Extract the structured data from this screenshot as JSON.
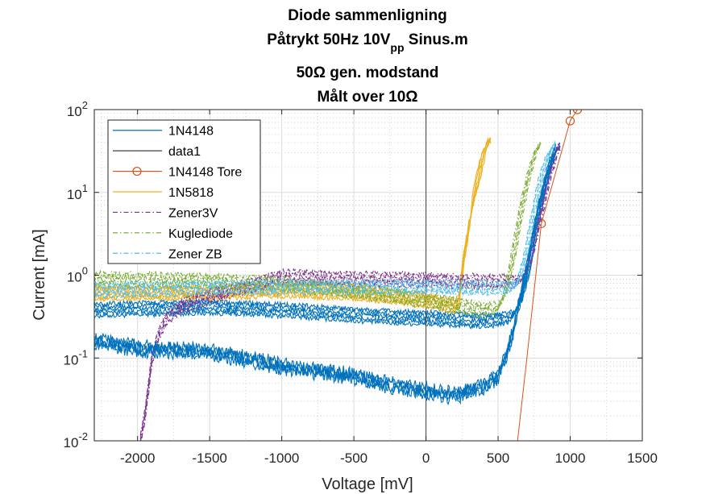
{
  "chart_data": {
    "type": "line",
    "title_lines": [
      {
        "main": "Diode sammenligning"
      },
      {
        "main": "Påtrykt 50Hz 10V",
        "sub": "pp",
        "after": " Sinus.m"
      },
      {
        "main": "50Ω gen. modstand"
      },
      {
        "main": "Målt over 10Ω"
      }
    ],
    "xlabel": "Voltage [mV]",
    "ylabel": "Current [mA]",
    "xlim": [
      -2300,
      1500
    ],
    "ylim": [
      0.01,
      100
    ],
    "yscale": "log",
    "grid": true,
    "minor_grid": true,
    "legend_position": "top-left",
    "xticks": [
      -2000,
      -1500,
      -1000,
      -500,
      0,
      500,
      1000,
      1500
    ],
    "xtick_labels": [
      "-2000",
      "-1500",
      "-1000",
      "-500",
      "0",
      "500",
      "1000",
      "1500"
    ],
    "yticks": [
      {
        "value": 0.01,
        "base": "10",
        "exp": "-2"
      },
      {
        "value": 0.1,
        "base": "10",
        "exp": "-1"
      },
      {
        "value": 1,
        "base": "10",
        "exp": "0"
      },
      {
        "value": 10,
        "base": "10",
        "exp": "1"
      },
      {
        "value": 100,
        "base": "10",
        "exp": "2"
      }
    ],
    "series": [
      {
        "name": "1N4148",
        "color": "#0072BD",
        "style": "solid",
        "x": [
          -2300,
          -2000,
          -1800,
          -1500,
          -1000,
          -500,
          -200,
          0,
          200,
          400,
          500,
          550,
          600,
          650,
          700,
          750,
          800,
          850,
          900,
          930
        ],
        "y": [
          0.38,
          0.39,
          0.4,
          0.41,
          0.38,
          0.33,
          0.31,
          0.3,
          0.29,
          0.28,
          0.29,
          0.3,
          0.32,
          0.45,
          1.0,
          3.0,
          8.0,
          18,
          32,
          38
        ]
      },
      {
        "name": "data1",
        "color": "#404040",
        "style": "solid",
        "x": [
          0,
          0
        ],
        "y": [
          0.01,
          100
        ]
      },
      {
        "name": "1N4148 Tore",
        "color": "#D95319",
        "style": "solid",
        "marker": "circle",
        "x": [
          635,
          700,
          800,
          1000,
          1050
        ],
        "y": [
          0.01,
          0.1,
          4.2,
          73,
          100
        ],
        "marker_x": [
          800,
          1000,
          1050
        ],
        "marker_y": [
          4.2,
          73,
          100
        ]
      },
      {
        "name": "1N5818",
        "color": "#EDB120",
        "style": "solid",
        "x": [
          -2300,
          -1500,
          -1000,
          -500,
          0,
          200,
          230,
          260,
          300,
          350,
          400,
          430,
          450
        ],
        "y": [
          0.6,
          0.62,
          0.65,
          0.62,
          0.5,
          0.42,
          0.5,
          1.5,
          4,
          12,
          30,
          42,
          45
        ]
      },
      {
        "name": "Zener3V",
        "color": "#7E2F8E",
        "style": "dashdot",
        "x": [
          -1980,
          -1950,
          -1920,
          -1900,
          -1850,
          -1800,
          -1700,
          -1500,
          -1000,
          -500,
          0,
          500,
          650,
          700,
          750,
          800,
          850,
          900,
          930
        ],
        "y": [
          0.01,
          0.02,
          0.05,
          0.1,
          0.2,
          0.3,
          0.42,
          0.55,
          0.95,
          0.9,
          0.87,
          0.83,
          0.85,
          1.1,
          2.5,
          6,
          14,
          28,
          40
        ]
      },
      {
        "name": "Kuglediode",
        "color": "#77AC30",
        "style": "dashdot",
        "x": [
          -2300,
          -1500,
          -1000,
          -500,
          0,
          400,
          500,
          550,
          600,
          650,
          700,
          750,
          800
        ],
        "y": [
          0.9,
          0.85,
          0.78,
          0.65,
          0.5,
          0.38,
          0.4,
          0.6,
          1.5,
          5,
          13,
          28,
          42
        ]
      },
      {
        "name": "Zener ZB",
        "color": "#4DBEEE",
        "style": "dashdot",
        "x": [
          -2300,
          -1500,
          -1000,
          -500,
          0,
          500,
          600,
          650,
          700,
          750,
          800,
          850,
          900
        ],
        "y": [
          0.65,
          0.7,
          0.72,
          0.72,
          0.72,
          0.7,
          0.72,
          0.9,
          2.0,
          6,
          16,
          30,
          40
        ]
      }
    ]
  }
}
